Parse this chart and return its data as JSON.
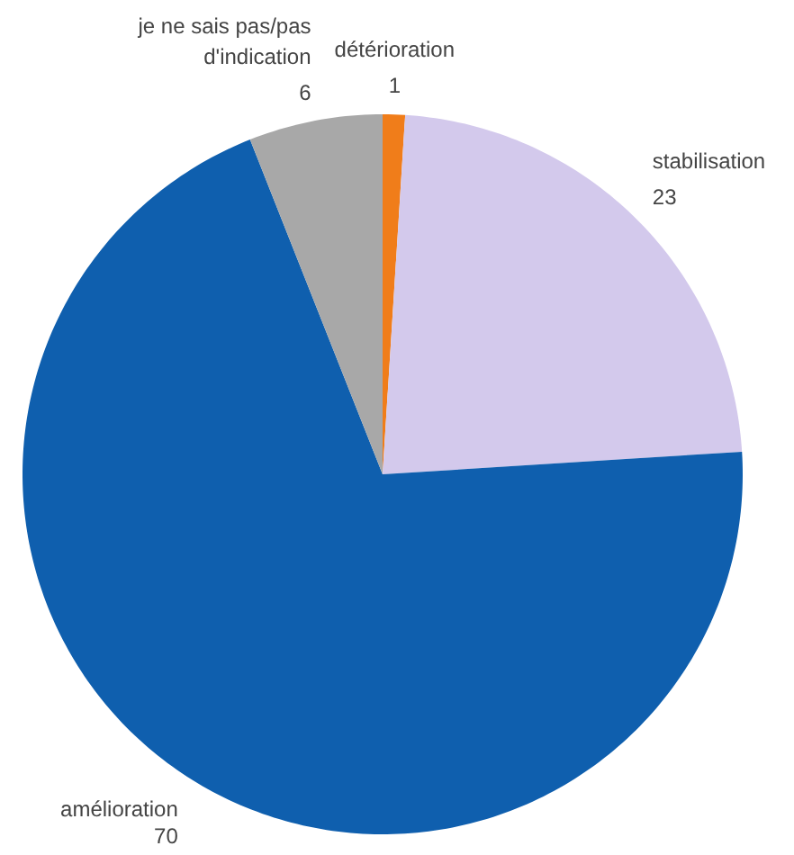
{
  "chart_data": {
    "type": "pie",
    "categories": [
      "détérioration",
      "stabilisation",
      "amélioration",
      "je ne sais pas/pas d'indication"
    ],
    "values": [
      1,
      23,
      70,
      6
    ],
    "colors": [
      "#f07d1a",
      "#d3c9ec",
      "#0f5fae",
      "#a8a8a8"
    ],
    "data_labels": true
  }
}
